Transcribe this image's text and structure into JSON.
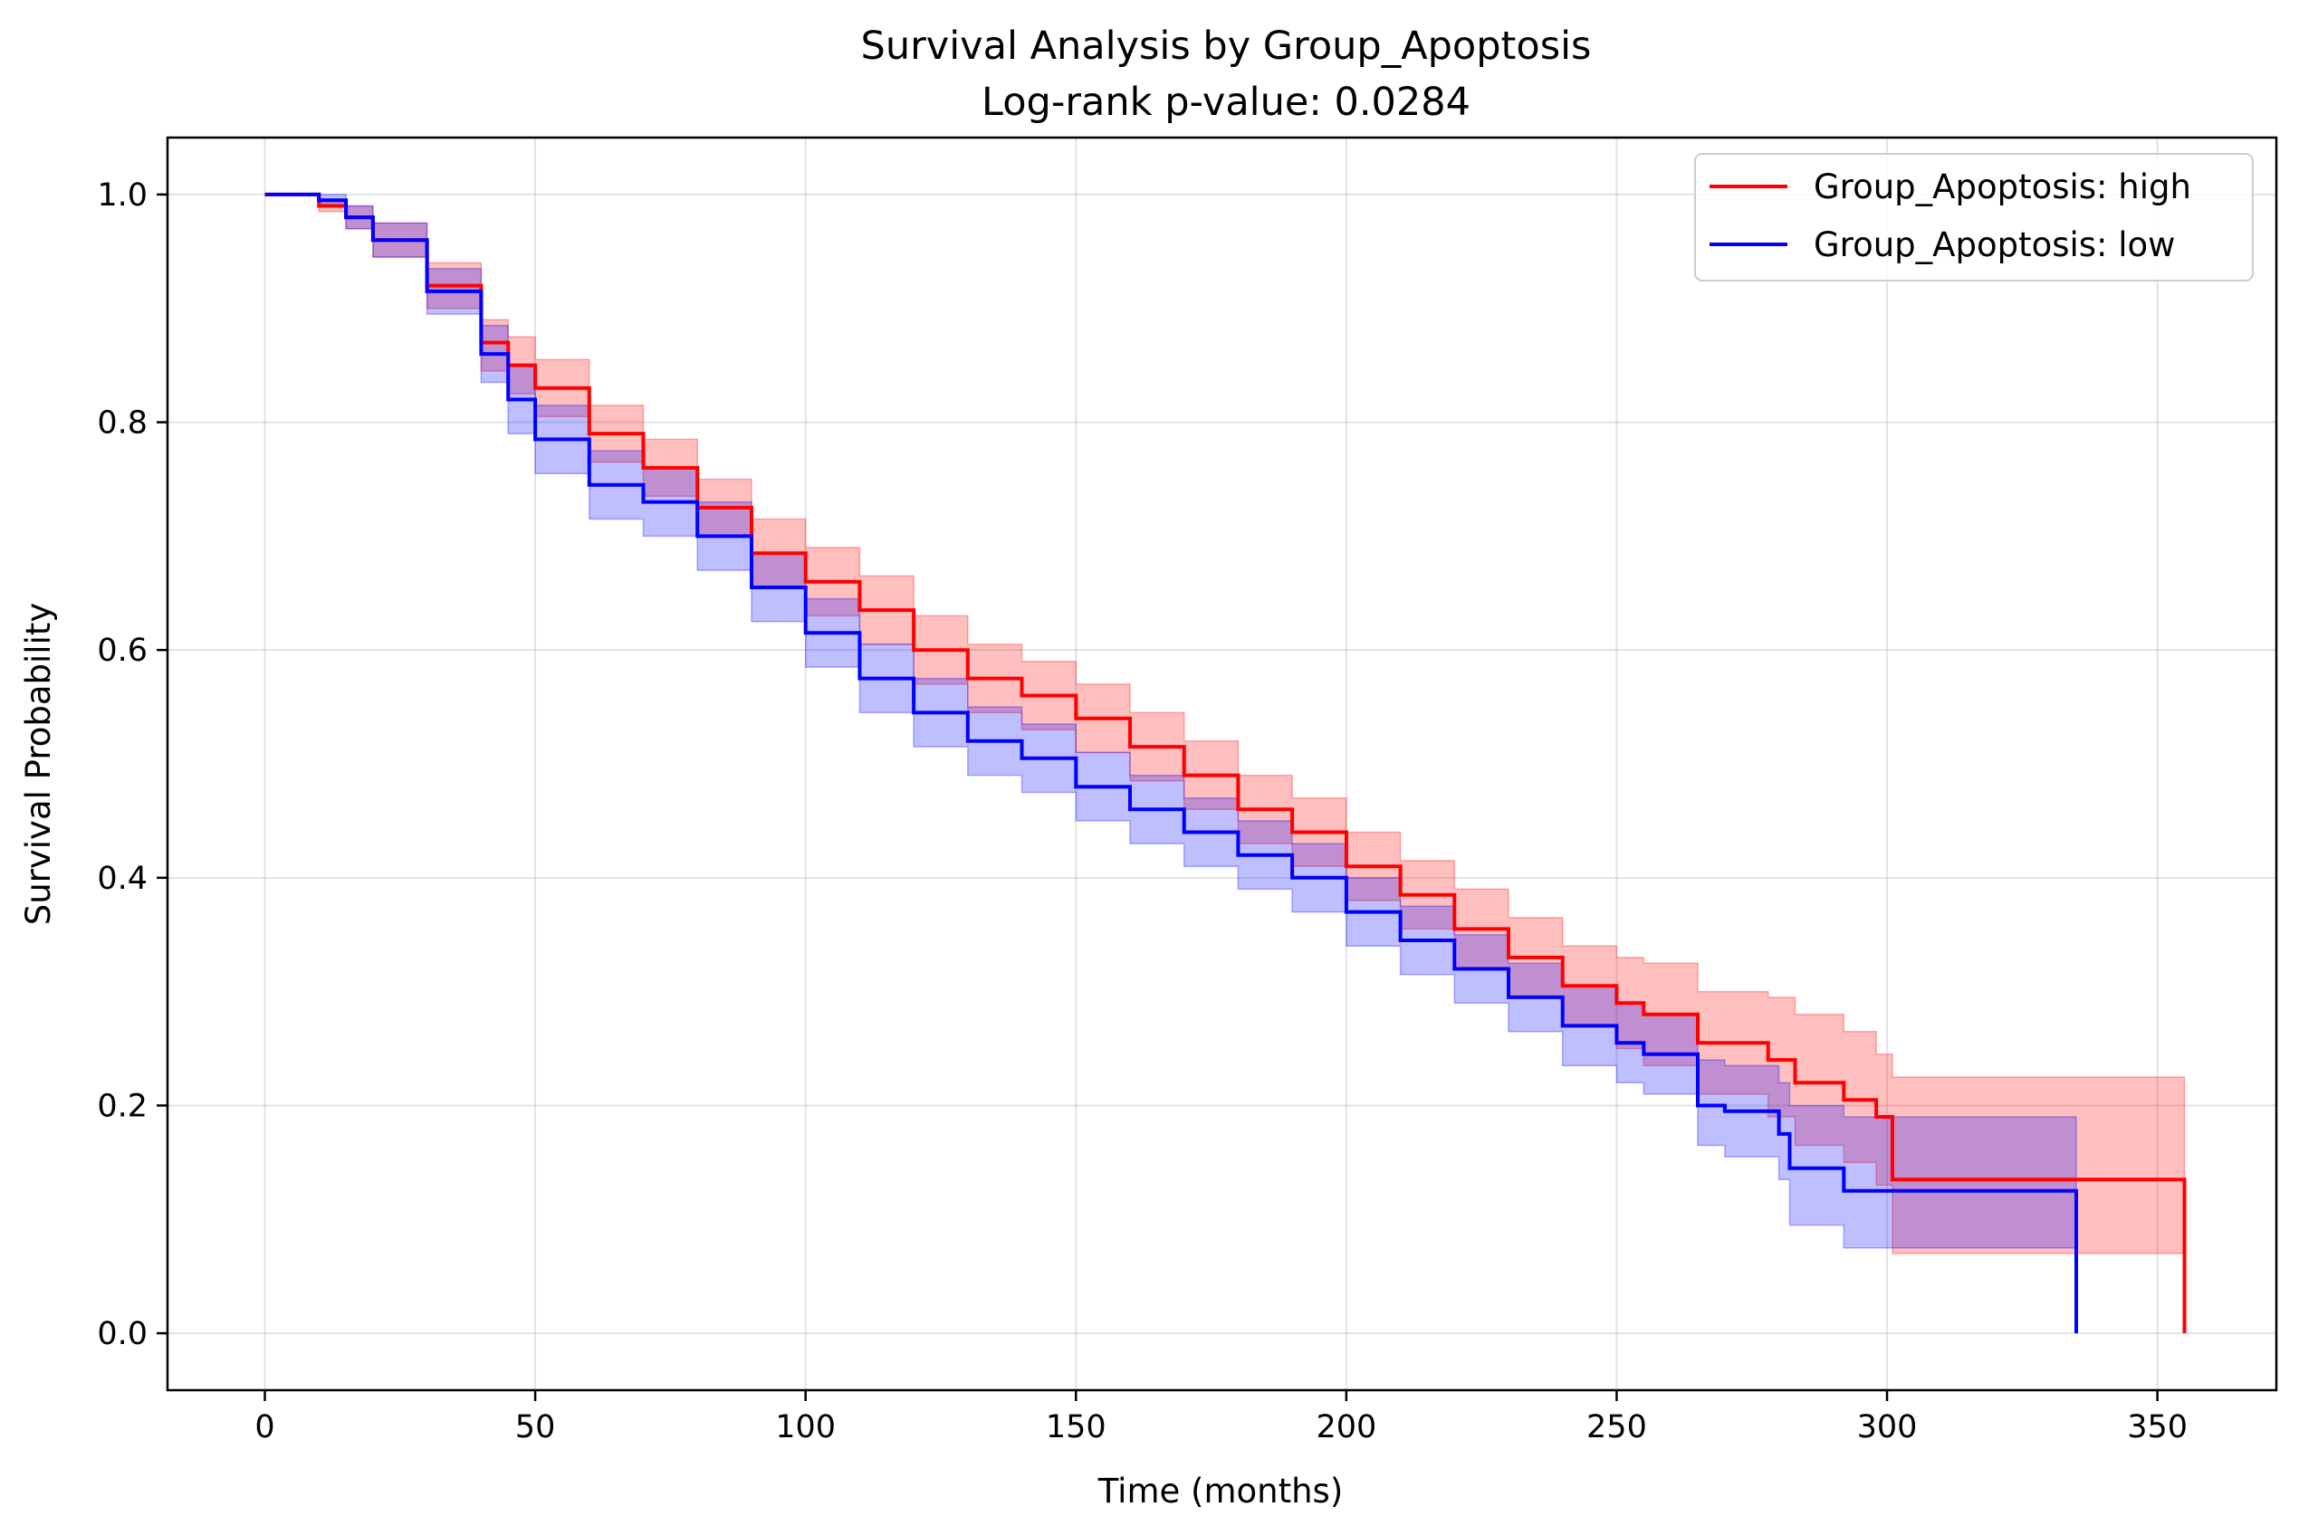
{
  "chart_data": {
    "type": "line",
    "subtype": "kaplan-meier survival curve",
    "title": "Survival Analysis by Group_Apoptosis",
    "subtitle": "Log-rank p-value: 0.0284",
    "xlabel": "Time (months)",
    "ylabel": "Survival Probability",
    "xlim": [
      -18,
      372
    ],
    "ylim": [
      -0.05,
      1.05
    ],
    "xticks": [
      0,
      50,
      100,
      150,
      200,
      250,
      300,
      350
    ],
    "xtick_labels": [
      "0",
      "50",
      "100",
      "150",
      "200",
      "250",
      "300",
      "350"
    ],
    "yticks": [
      0.0,
      0.2,
      0.4,
      0.6,
      0.8,
      1.0
    ],
    "ytick_labels": [
      "0.0",
      "0.2",
      "0.4",
      "0.6",
      "0.8",
      "1.0"
    ],
    "grid": true,
    "legend_position": "top-right",
    "series": [
      {
        "name": "Group_Apoptosis: high",
        "color": "#ff0000",
        "ci_color": "#ff0000",
        "x": [
          0,
          10,
          15,
          20,
          30,
          40,
          45,
          50,
          60,
          70,
          80,
          90,
          100,
          110,
          120,
          130,
          140,
          150,
          160,
          170,
          180,
          190,
          200,
          210,
          220,
          230,
          240,
          250,
          255,
          265,
          278,
          283,
          292,
          298,
          301,
          320,
          340,
          355,
          355
        ],
        "y": [
          1.0,
          0.99,
          0.98,
          0.96,
          0.92,
          0.87,
          0.85,
          0.83,
          0.79,
          0.76,
          0.725,
          0.685,
          0.66,
          0.635,
          0.6,
          0.575,
          0.56,
          0.54,
          0.515,
          0.49,
          0.46,
          0.44,
          0.41,
          0.385,
          0.355,
          0.33,
          0.305,
          0.29,
          0.28,
          0.255,
          0.24,
          0.22,
          0.205,
          0.19,
          0.135,
          0.135,
          0.135,
          0.135,
          0.0
        ],
        "ci_upper": [
          1.0,
          0.995,
          0.99,
          0.975,
          0.94,
          0.89,
          0.875,
          0.855,
          0.815,
          0.785,
          0.75,
          0.715,
          0.69,
          0.665,
          0.63,
          0.605,
          0.59,
          0.57,
          0.545,
          0.52,
          0.49,
          0.47,
          0.44,
          0.415,
          0.39,
          0.365,
          0.34,
          0.33,
          0.325,
          0.3,
          0.295,
          0.28,
          0.265,
          0.245,
          0.225,
          0.225,
          0.225,
          0.225,
          0.225
        ],
        "ci_lower": [
          1.0,
          0.985,
          0.97,
          0.945,
          0.9,
          0.845,
          0.825,
          0.805,
          0.765,
          0.735,
          0.7,
          0.655,
          0.63,
          0.605,
          0.57,
          0.545,
          0.53,
          0.51,
          0.485,
          0.46,
          0.43,
          0.41,
          0.38,
          0.355,
          0.32,
          0.295,
          0.27,
          0.25,
          0.235,
          0.21,
          0.19,
          0.165,
          0.15,
          0.13,
          0.07,
          0.07,
          0.07,
          0.07,
          0.07
        ]
      },
      {
        "name": "Group_Apoptosis: low",
        "color": "#0000ff",
        "ci_color": "#0000ff",
        "x": [
          0,
          10,
          15,
          20,
          30,
          40,
          45,
          50,
          60,
          70,
          80,
          90,
          100,
          110,
          120,
          130,
          140,
          150,
          160,
          170,
          180,
          190,
          200,
          210,
          220,
          230,
          240,
          250,
          255,
          265,
          270,
          280,
          282,
          292,
          300,
          320,
          335,
          335
        ],
        "y": [
          1.0,
          0.995,
          0.98,
          0.96,
          0.915,
          0.86,
          0.82,
          0.785,
          0.745,
          0.73,
          0.7,
          0.655,
          0.615,
          0.575,
          0.545,
          0.52,
          0.505,
          0.48,
          0.46,
          0.44,
          0.42,
          0.4,
          0.37,
          0.345,
          0.32,
          0.295,
          0.27,
          0.255,
          0.245,
          0.2,
          0.195,
          0.175,
          0.145,
          0.125,
          0.125,
          0.125,
          0.125,
          0.0
        ],
        "ci_upper": [
          1.0,
          1.0,
          0.99,
          0.975,
          0.935,
          0.885,
          0.85,
          0.815,
          0.775,
          0.76,
          0.73,
          0.685,
          0.645,
          0.605,
          0.575,
          0.55,
          0.535,
          0.51,
          0.49,
          0.47,
          0.45,
          0.43,
          0.4,
          0.375,
          0.35,
          0.325,
          0.305,
          0.29,
          0.28,
          0.24,
          0.235,
          0.22,
          0.2,
          0.19,
          0.19,
          0.19,
          0.19,
          0.19
        ],
        "ci_lower": [
          1.0,
          0.99,
          0.97,
          0.945,
          0.895,
          0.835,
          0.79,
          0.755,
          0.715,
          0.7,
          0.67,
          0.625,
          0.585,
          0.545,
          0.515,
          0.49,
          0.475,
          0.45,
          0.43,
          0.41,
          0.39,
          0.37,
          0.34,
          0.315,
          0.29,
          0.265,
          0.235,
          0.22,
          0.21,
          0.165,
          0.155,
          0.135,
          0.095,
          0.075,
          0.075,
          0.075,
          0.075,
          0.075
        ]
      }
    ]
  }
}
